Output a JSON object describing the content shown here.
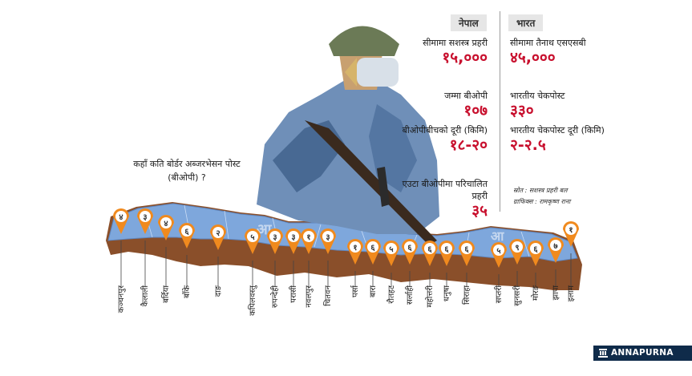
{
  "question_text": "कहाँ कति बोर्डर अब्जरभेसन पोस्ट (बीओपी) ?",
  "nepal_header": "नेपाल",
  "india_header": "भारत",
  "stats": {
    "nepal": [
      {
        "label": "सीमामा सशस्त्र प्रहरी",
        "value": "१५,०००"
      },
      {
        "label": "जम्मा बीओपी",
        "value": "१०७"
      },
      {
        "label": "बीओपीबीचको दूरी (किमि)",
        "value": "१८-२०"
      },
      {
        "label": "एउटा बीओपीमा परिचालित प्रहरी",
        "value": "३५"
      }
    ],
    "india": [
      {
        "label": "सीमामा तैनाथ एसएसबी",
        "value": "४५,०००"
      },
      {
        "label": "भारतीय चेकपोस्ट",
        "value": "३३०"
      },
      {
        "label": "भारतीय चेकपोस्ट दूरी (किमि)",
        "value": "२-२.५"
      }
    ]
  },
  "source_text": "स्रोत : सशस्त्र प्रहरी बल",
  "graphics_text": "ग्राफिक्स : रामकृष्ण राना",
  "brand_text": "ANNAPURNA POST",
  "colors": {
    "pin": "#f08a1e",
    "map_blue": "#7ea7dc",
    "map_brown": "#8a4f2a",
    "number": "#c8102e",
    "brand_bg": "#0f2b4a"
  },
  "pins": [
    {
      "district": "कञ्चनपुर",
      "count": "४"
    },
    {
      "district": "कैलाली",
      "count": "३"
    },
    {
      "district": "बर्दिया",
      "count": "४"
    },
    {
      "district": "बाँके",
      "count": "६"
    },
    {
      "district": "दाङ",
      "count": "२"
    },
    {
      "district": "कपिलवस्तु",
      "count": "५"
    },
    {
      "district": "रुपन्देही",
      "count": "३"
    },
    {
      "district": "परासी",
      "count": "३"
    },
    {
      "district": "नवलपुर",
      "count": "१"
    },
    {
      "district": "चितवन",
      "count": "३"
    },
    {
      "district": "पर्सा",
      "count": "१"
    },
    {
      "district": "बारा",
      "count": "६"
    },
    {
      "district": "रौतहट",
      "count": "५"
    },
    {
      "district": "सर्लाही",
      "count": "६"
    },
    {
      "district": "महोत्तरी",
      "count": "६"
    },
    {
      "district": "धनुषा",
      "count": "६"
    },
    {
      "district": "सिराहा",
      "count": "६"
    },
    {
      "district": "सप्तरी",
      "count": "५"
    },
    {
      "district": "सुनसरी",
      "count": "९"
    },
    {
      "district": "मोरङ",
      "count": "६"
    },
    {
      "district": "झापा",
      "count": "७"
    },
    {
      "district": "इलाम",
      "count": "१"
    }
  ]
}
